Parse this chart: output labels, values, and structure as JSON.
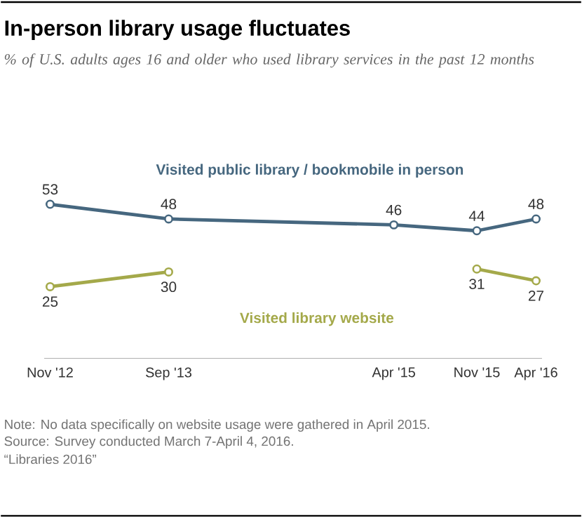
{
  "chart_data": {
    "type": "line",
    "title": "In-person library usage fluctuates",
    "subtitle": "% of  U.S. adults ages 16 and older who used library services in the past 12 months",
    "x": [
      "2012-11",
      "2013-09",
      "2015-04",
      "2015-11",
      "2016-04"
    ],
    "xlim": [
      "2012-10-16",
      "2016-04-16"
    ],
    "xticks": [
      {
        "value": "2012-11",
        "label": "Nov '12"
      },
      {
        "value": "2013-09",
        "label": "Sep '13"
      },
      {
        "value": "2015-04",
        "label": "Apr '15"
      },
      {
        "value": "2015-11",
        "label": "Nov '15"
      },
      {
        "value": "2016-04",
        "label": "Apr '16"
      }
    ],
    "series": [
      {
        "name": "Visited public library / bookmobile in person",
        "color": "#46677f",
        "values": [
          53,
          48,
          46,
          44,
          48
        ]
      },
      {
        "name": "Visited library website",
        "color": "#a4a94a",
        "values": [
          25,
          30,
          null,
          31,
          27
        ]
      }
    ],
    "marker": "circle",
    "data_labels": true,
    "grid": false,
    "legend": false,
    "annotations": [
      "Note: No data specifically on website usage were gathered in April 2015.",
      "Source: Survey conducted March 7-April 4, 2016.",
      "“Libraries 2016”"
    ]
  }
}
